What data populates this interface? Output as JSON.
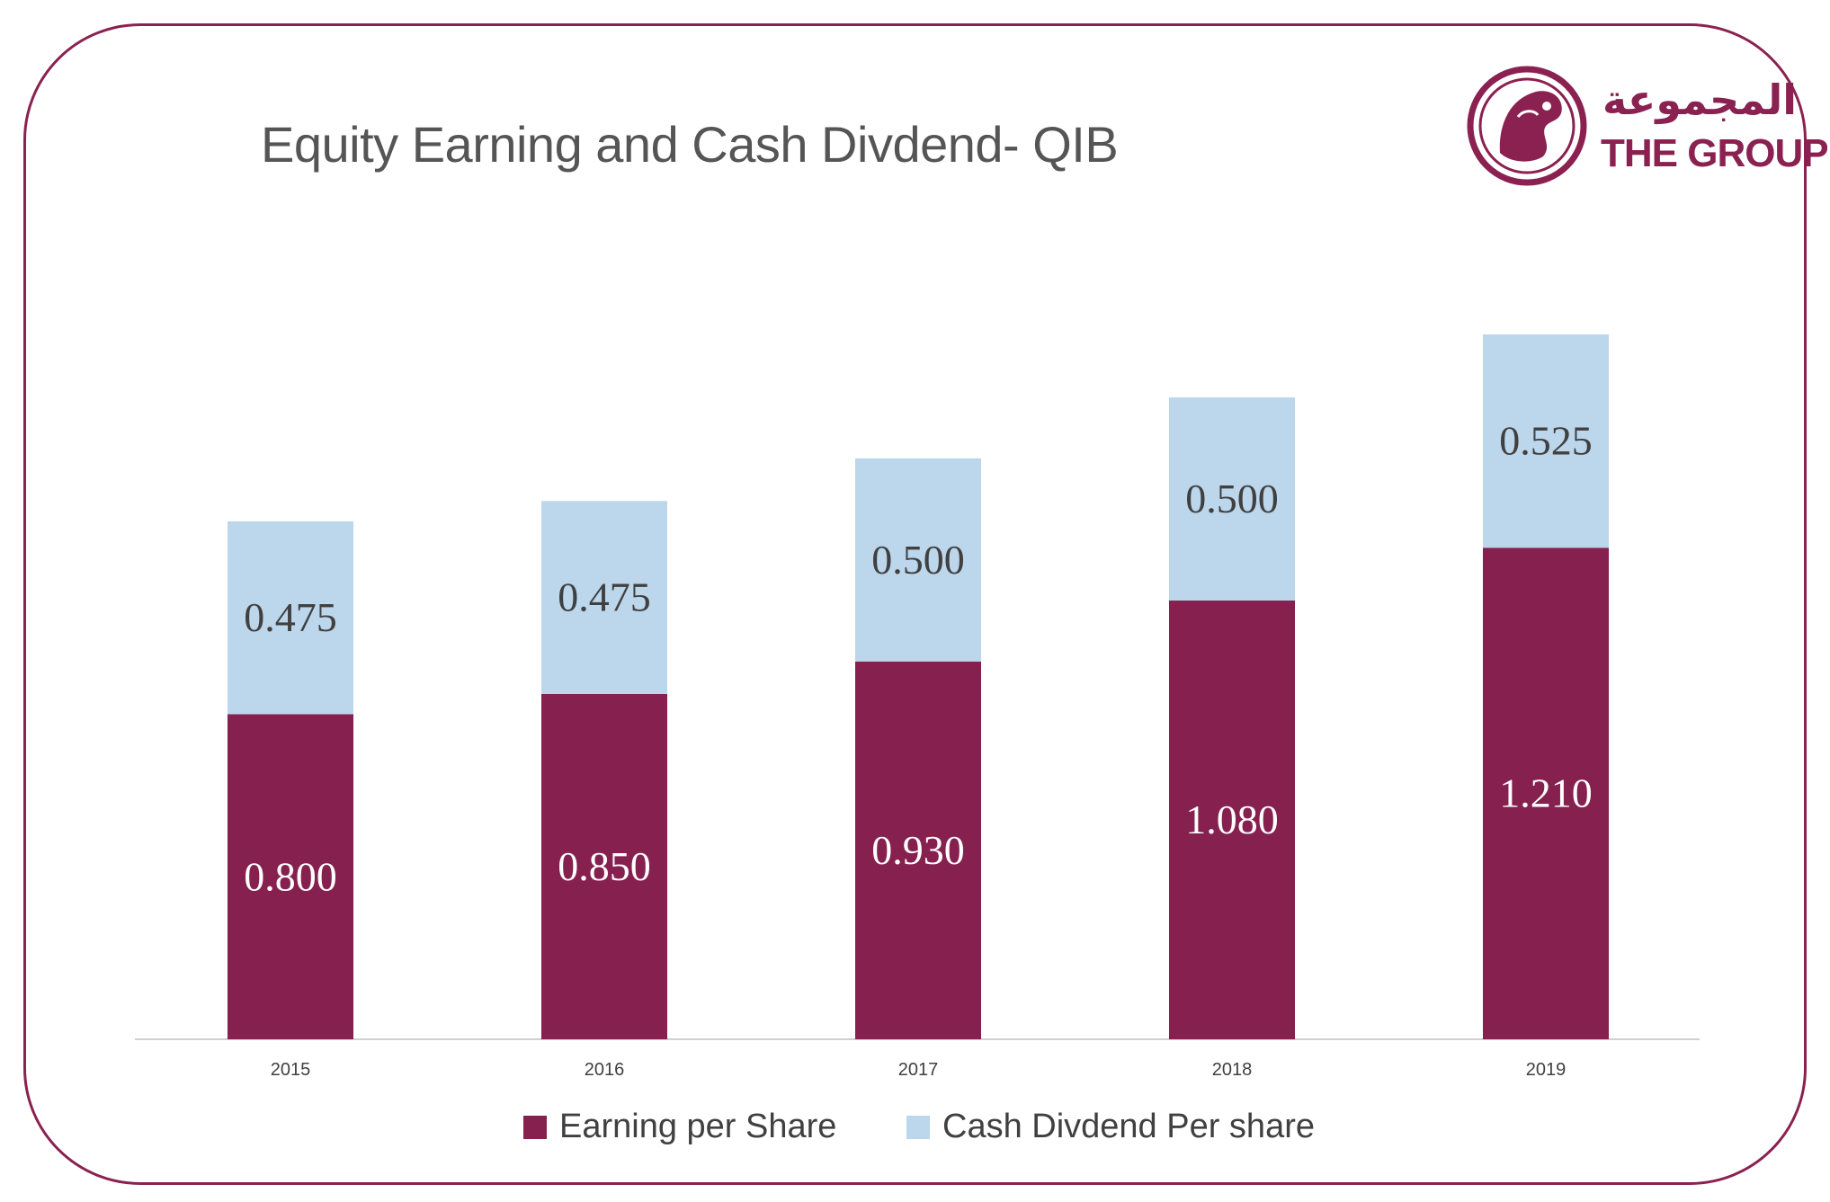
{
  "title": "Equity Earning and Cash Divdend- QIB",
  "logo": {
    "arabic": "المجموعة",
    "english": "THE GROUP",
    "icon": "falcon-emblem-icon"
  },
  "colors": {
    "earning": "#85204f",
    "dividend": "#bcd6ec",
    "frame": "#8a2150",
    "axis": "#d0d0d0",
    "label_dark": "#404040",
    "label_light": "#ffffff"
  },
  "chart_data": {
    "type": "bar",
    "stacked": true,
    "categories": [
      "2015",
      "2016",
      "2017",
      "2018",
      "2019"
    ],
    "series": [
      {
        "name": "Earning per Share",
        "values": [
          0.8,
          0.85,
          0.93,
          1.08,
          1.21
        ],
        "labels": [
          "0.800",
          "0.850",
          "0.930",
          "1.080",
          "1.210"
        ]
      },
      {
        "name": "Cash Divdend Per share",
        "values": [
          0.475,
          0.475,
          0.5,
          0.5,
          0.525
        ],
        "labels": [
          "0.475",
          "0.475",
          "0.500",
          "0.500",
          "0.525"
        ]
      }
    ],
    "ylim": [
      0,
      1.735
    ],
    "grid": false,
    "legend": "bottom"
  }
}
